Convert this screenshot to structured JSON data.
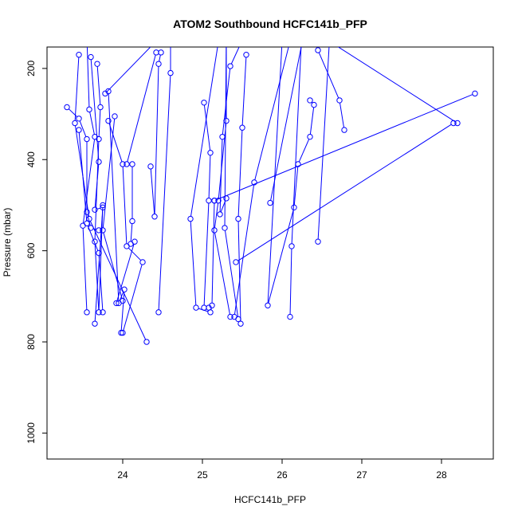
{
  "chart_data": {
    "type": "line",
    "title": "ATOM2 Southbound HCFC141b_PFP",
    "xlabel": "HCFC141b_PFP",
    "ylabel": "Pressure (mbar)",
    "xlim": [
      23.05,
      28.65
    ],
    "ylim": [
      1057,
      153
    ],
    "y_reversed": true,
    "x_ticks": [
      24,
      25,
      26,
      27,
      28
    ],
    "y_ticks": [
      200,
      400,
      600,
      800,
      1000
    ],
    "line_color": "#0000ff",
    "marker": "open-circle",
    "grid": false,
    "legend": "none",
    "series": [
      {
        "points": [
          [
            23.55,
            130
          ],
          [
            23.58,
            290
          ],
          [
            23.65,
            350
          ],
          [
            23.5,
            545
          ],
          [
            23.55,
            735
          ]
        ]
      },
      {
        "points": [
          [
            23.3,
            285
          ],
          [
            23.45,
            310
          ],
          [
            23.55,
            355
          ],
          [
            23.55,
            515
          ],
          [
            23.6,
            550
          ],
          [
            23.7,
            555
          ]
        ]
      },
      {
        "points": [
          [
            23.45,
            335
          ],
          [
            23.55,
            540
          ],
          [
            23.7,
            605
          ],
          [
            23.75,
            735
          ]
        ]
      },
      {
        "points": [
          [
            23.6,
            175
          ],
          [
            23.7,
            405
          ],
          [
            23.65,
            510
          ],
          [
            23.75,
            505
          ],
          [
            23.65,
            760
          ]
        ]
      },
      {
        "points": [
          [
            23.68,
            190
          ],
          [
            23.72,
            285
          ],
          [
            23.7,
            355
          ],
          [
            23.65,
            580
          ],
          [
            23.7,
            735
          ],
          [
            23.75,
            500
          ]
        ]
      },
      {
        "points": [
          [
            23.82,
            250
          ],
          [
            23.95,
            715
          ],
          [
            24.02,
            685
          ],
          [
            23.98,
            780
          ]
        ]
      },
      {
        "points": [
          [
            23.9,
            305
          ],
          [
            23.75,
            555
          ],
          [
            24.0,
            710
          ]
        ]
      },
      {
        "points": [
          [
            23.45,
            170
          ],
          [
            23.4,
            320
          ],
          [
            23.58,
            530
          ],
          [
            24.3,
            800
          ]
        ]
      },
      {
        "points": [
          [
            23.82,
            315
          ],
          [
            24.0,
            410
          ],
          [
            24.05,
            590
          ],
          [
            24.25,
            625
          ],
          [
            24.0,
            780
          ]
        ]
      },
      {
        "points": [
          [
            24.42,
            165
          ],
          [
            24.05,
            410
          ],
          [
            24.12,
            410
          ],
          [
            24.12,
            535
          ],
          [
            24.1,
            585
          ],
          [
            24.15,
            580
          ],
          [
            23.92,
            715
          ]
        ]
      },
      {
        "points": [
          [
            24.48,
            165
          ],
          [
            24.45,
            190
          ],
          [
            24.4,
            525
          ],
          [
            24.35,
            415
          ]
        ]
      },
      {
        "points": [
          [
            24.6,
            130
          ],
          [
            24.6,
            210
          ],
          [
            24.45,
            735
          ]
        ]
      },
      {
        "points": [
          [
            24.42,
            140
          ],
          [
            23.78,
            255
          ]
        ]
      },
      {
        "points": [
          [
            25.22,
            120
          ],
          [
            24.85,
            530
          ],
          [
            24.92,
            725
          ],
          [
            25.1,
            735
          ],
          [
            25.12,
            720
          ],
          [
            25.15,
            490
          ]
        ]
      },
      {
        "points": [
          [
            25.02,
            275
          ],
          [
            25.1,
            385
          ],
          [
            25.08,
            490
          ],
          [
            25.02,
            725
          ],
          [
            25.08,
            725
          ]
        ]
      },
      {
        "points": [
          [
            25.3,
            120
          ],
          [
            25.3,
            315
          ],
          [
            25.2,
            490
          ],
          [
            25.15,
            555
          ],
          [
            25.35,
            745
          ]
        ]
      },
      {
        "points": [
          [
            25.55,
            170
          ],
          [
            25.5,
            330
          ],
          [
            25.45,
            530
          ],
          [
            25.48,
            760
          ]
        ]
      },
      {
        "points": [
          [
            25.6,
            100
          ],
          [
            25.35,
            195
          ],
          [
            25.25,
            350
          ],
          [
            25.22,
            520
          ],
          [
            25.3,
            485
          ]
        ]
      },
      {
        "points": [
          [
            25.3,
            120
          ],
          [
            25.28,
            550
          ],
          [
            25.45,
            750
          ]
        ]
      },
      {
        "points": [
          [
            26.1,
            140
          ],
          [
            25.65,
            450
          ],
          [
            25.4,
            745
          ]
        ]
      },
      {
        "points": [
          [
            26.0,
            140
          ],
          [
            25.82,
            720
          ],
          [
            26.15,
            505
          ],
          [
            26.2,
            410
          ],
          [
            26.35,
            350
          ],
          [
            26.4,
            280
          ],
          [
            26.35,
            270
          ]
        ]
      },
      {
        "points": [
          [
            26.25,
            110
          ],
          [
            26.12,
            590
          ],
          [
            26.1,
            745
          ]
        ]
      },
      {
        "points": [
          [
            26.6,
            120
          ],
          [
            26.45,
            580
          ]
        ]
      },
      {
        "points": [
          [
            26.3,
            100
          ],
          [
            25.85,
            495
          ]
        ]
      },
      {
        "points": [
          [
            26.45,
            160
          ],
          [
            26.72,
            270
          ],
          [
            26.78,
            335
          ]
        ]
      },
      {
        "points": [
          [
            25.42,
            625
          ],
          [
            28.15,
            320
          ]
        ]
      },
      {
        "points": [
          [
            25.15,
            490
          ],
          [
            28.42,
            255
          ]
        ]
      },
      {
        "points": [
          [
            26.5,
            130
          ],
          [
            28.2,
            320
          ]
        ]
      }
    ]
  }
}
